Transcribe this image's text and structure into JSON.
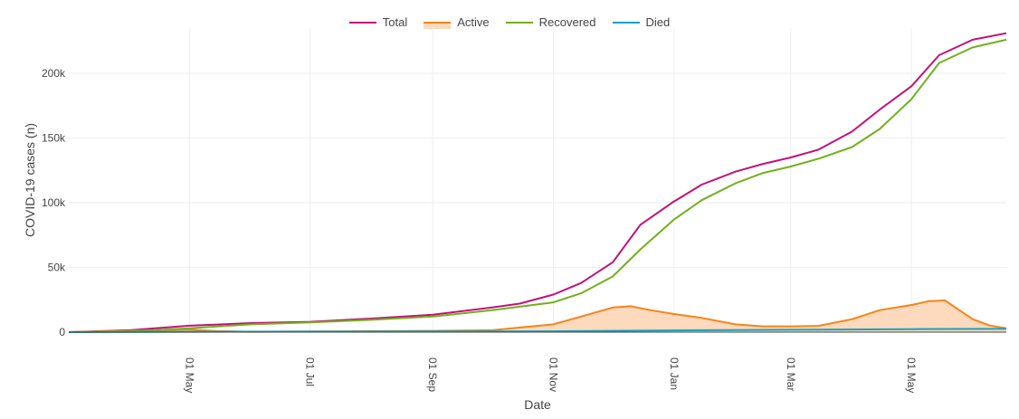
{
  "chart_data": {
    "type": "line",
    "xlabel": "Date",
    "ylabel": "COVID-19 cases (n)",
    "x_type": "date",
    "x_range": [
      "2020-03-01",
      "2021-06-18"
    ],
    "y_range": [
      0,
      235000
    ],
    "grid": true,
    "legend_position": "top-center",
    "x_ticks": [
      {
        "date": "2020-05-01",
        "label": "01 May"
      },
      {
        "date": "2020-07-01",
        "label": "01 Jul"
      },
      {
        "date": "2020-09-01",
        "label": "01 Sep"
      },
      {
        "date": "2020-11-01",
        "label": "01 Nov"
      },
      {
        "date": "2021-01-01",
        "label": "01 Jan"
      },
      {
        "date": "2021-03-01",
        "label": "01 Mar"
      },
      {
        "date": "2021-05-01",
        "label": "01 May"
      }
    ],
    "y_ticks": [
      {
        "value": 0,
        "label": "0"
      },
      {
        "value": 50000,
        "label": "50k"
      },
      {
        "value": 100000,
        "label": "100k"
      },
      {
        "value": 150000,
        "label": "150k"
      },
      {
        "value": 200000,
        "label": "200k"
      }
    ],
    "series": [
      {
        "name": "Total",
        "color": "#c2127a",
        "fill": false,
        "points": [
          [
            "2020-03-01",
            0
          ],
          [
            "2020-04-01",
            1500
          ],
          [
            "2020-05-01",
            5000
          ],
          [
            "2020-06-01",
            7000
          ],
          [
            "2020-07-01",
            8000
          ],
          [
            "2020-08-01",
            10500
          ],
          [
            "2020-09-01",
            13500
          ],
          [
            "2020-10-01",
            19000
          ],
          [
            "2020-10-15",
            22000
          ],
          [
            "2020-11-01",
            29000
          ],
          [
            "2020-11-15",
            38000
          ],
          [
            "2020-12-01",
            54000
          ],
          [
            "2020-12-15",
            83000
          ],
          [
            "2021-01-01",
            101000
          ],
          [
            "2021-01-15",
            114000
          ],
          [
            "2021-02-01",
            124000
          ],
          [
            "2021-02-15",
            130000
          ],
          [
            "2021-03-01",
            135000
          ],
          [
            "2021-03-15",
            141000
          ],
          [
            "2021-04-01",
            155000
          ],
          [
            "2021-04-15",
            172000
          ],
          [
            "2021-05-01",
            190000
          ],
          [
            "2021-05-15",
            214000
          ],
          [
            "2021-06-01",
            226000
          ],
          [
            "2021-06-18",
            231000
          ]
        ]
      },
      {
        "name": "Active",
        "color": "#f58518",
        "fill": true,
        "fill_color": "#fdd9bd",
        "points": [
          [
            "2020-03-01",
            0
          ],
          [
            "2020-04-01",
            1000
          ],
          [
            "2020-05-01",
            2000
          ],
          [
            "2020-05-15",
            800
          ],
          [
            "2020-06-01",
            300
          ],
          [
            "2020-07-01",
            500
          ],
          [
            "2020-08-01",
            800
          ],
          [
            "2020-09-01",
            1000
          ],
          [
            "2020-10-01",
            1500
          ],
          [
            "2020-11-01",
            6000
          ],
          [
            "2020-11-15",
            12000
          ],
          [
            "2020-12-01",
            19000
          ],
          [
            "2020-12-10",
            20000
          ],
          [
            "2020-12-20",
            17000
          ],
          [
            "2021-01-01",
            14000
          ],
          [
            "2021-01-15",
            11000
          ],
          [
            "2021-02-01",
            6000
          ],
          [
            "2021-02-15",
            4500
          ],
          [
            "2021-03-01",
            4500
          ],
          [
            "2021-03-15",
            4800
          ],
          [
            "2021-04-01",
            10000
          ],
          [
            "2021-04-15",
            17000
          ],
          [
            "2021-05-01",
            21000
          ],
          [
            "2021-05-10",
            24000
          ],
          [
            "2021-05-18",
            24500
          ],
          [
            "2021-06-01",
            10000
          ],
          [
            "2021-06-10",
            5000
          ],
          [
            "2021-06-18",
            3000
          ]
        ]
      },
      {
        "name": "Recovered",
        "color": "#72b01d",
        "fill": false,
        "points": [
          [
            "2020-03-01",
            0
          ],
          [
            "2020-04-01",
            500
          ],
          [
            "2020-05-01",
            3000
          ],
          [
            "2020-06-01",
            6000
          ],
          [
            "2020-07-01",
            7500
          ],
          [
            "2020-08-01",
            9500
          ],
          [
            "2020-09-01",
            12000
          ],
          [
            "2020-10-01",
            17000
          ],
          [
            "2020-11-01",
            23000
          ],
          [
            "2020-11-15",
            30000
          ],
          [
            "2020-12-01",
            43000
          ],
          [
            "2020-12-15",
            64000
          ],
          [
            "2021-01-01",
            87000
          ],
          [
            "2021-01-15",
            102000
          ],
          [
            "2021-02-01",
            115000
          ],
          [
            "2021-02-15",
            123000
          ],
          [
            "2021-03-01",
            128000
          ],
          [
            "2021-03-15",
            134000
          ],
          [
            "2021-04-01",
            143000
          ],
          [
            "2021-04-15",
            157000
          ],
          [
            "2021-05-01",
            180000
          ],
          [
            "2021-05-15",
            208000
          ],
          [
            "2021-06-01",
            220000
          ],
          [
            "2021-06-18",
            226000
          ]
        ]
      },
      {
        "name": "Died",
        "color": "#17a2c0",
        "fill": false,
        "points": [
          [
            "2020-03-01",
            0
          ],
          [
            "2020-05-01",
            300
          ],
          [
            "2020-07-01",
            400
          ],
          [
            "2020-09-01",
            500
          ],
          [
            "2020-11-01",
            600
          ],
          [
            "2021-01-01",
            1300
          ],
          [
            "2021-03-01",
            1800
          ],
          [
            "2021-05-01",
            2300
          ],
          [
            "2021-06-18",
            2500
          ]
        ]
      }
    ]
  }
}
